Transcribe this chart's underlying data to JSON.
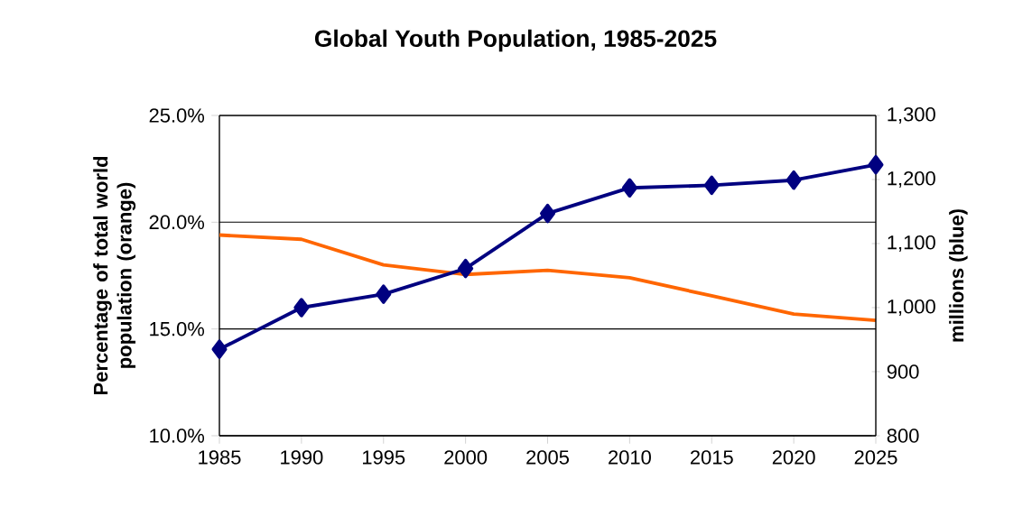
{
  "chart_data": {
    "type": "line",
    "title": "Global Youth Population, 1985-2025",
    "ylabel": "Percentage of total world population (orange)",
    "y2label": "millions (blue)",
    "x": [
      1985,
      1990,
      1995,
      2000,
      2005,
      2010,
      2015,
      2020,
      2025
    ],
    "series": [
      {
        "color": "#ff6600",
        "marker": "none",
        "axis": "y",
        "values": [
          19.4,
          19.2,
          18.0,
          17.55,
          17.75,
          17.4,
          16.55,
          15.7,
          15.4
        ]
      },
      {
        "color": "#000080",
        "marker": "diamond",
        "axis": "y2",
        "values": [
          935,
          1000,
          1021,
          1061,
          1147,
          1187,
          1191,
          1199,
          1223
        ]
      }
    ],
    "xlim": [
      1985,
      2025
    ],
    "xticks": [
      1985,
      1990,
      1995,
      2000,
      2005,
      2010,
      2015,
      2020,
      2025
    ],
    "ylim": [
      10,
      25
    ],
    "yticks": [
      {
        "value": 10,
        "label": "10.0%"
      },
      {
        "value": 15,
        "label": "15.0%"
      },
      {
        "value": 20,
        "label": "20.0%"
      },
      {
        "value": 25,
        "label": "25.0%"
      }
    ],
    "y2lim": [
      800,
      1300
    ],
    "y2ticks": [
      800,
      900,
      {
        "value": 1000,
        "label": "1,000"
      },
      {
        "value": 1100,
        "label": "1,100"
      },
      {
        "value": 1200,
        "label": "1,200"
      },
      {
        "value": 1300,
        "label": "1,300"
      }
    ],
    "grid": "y",
    "line_style": "solid"
  }
}
